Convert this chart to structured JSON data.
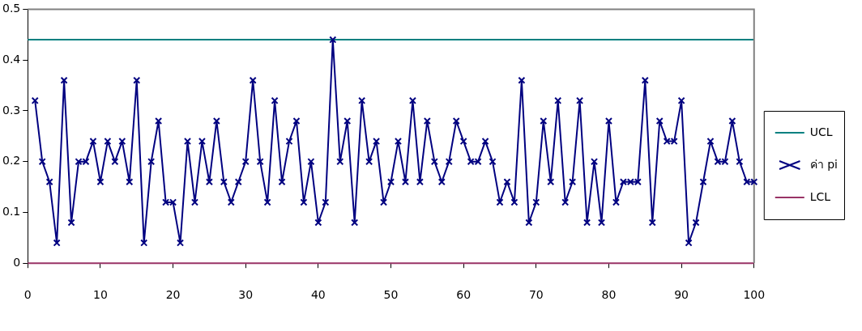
{
  "chart_data": {
    "type": "line",
    "series": [
      {
        "name": "ค่า pi",
        "color": "#000080",
        "marker": "cross",
        "x": [
          1,
          2,
          3,
          4,
          5,
          6,
          7,
          8,
          9,
          10,
          11,
          12,
          13,
          14,
          15,
          16,
          17,
          18,
          19,
          20,
          21,
          22,
          23,
          24,
          25,
          26,
          27,
          28,
          29,
          30,
          31,
          32,
          33,
          34,
          35,
          36,
          37,
          38,
          39,
          40,
          41,
          42,
          43,
          44,
          45,
          46,
          47,
          48,
          49,
          50,
          51,
          52,
          53,
          54,
          55,
          56,
          57,
          58,
          59,
          60,
          61,
          62,
          63,
          64,
          65,
          66,
          67,
          68,
          69,
          70,
          71,
          72,
          73,
          74,
          75,
          76,
          77,
          78,
          79,
          80,
          81,
          82,
          83,
          84,
          85,
          86,
          87,
          88,
          89,
          90,
          91,
          92,
          93,
          94,
          95,
          96,
          97,
          98,
          99,
          100
        ],
        "values": [
          0.32,
          0.2,
          0.16,
          0.04,
          0.36,
          0.08,
          0.2,
          0.2,
          0.24,
          0.16,
          0.24,
          0.2,
          0.24,
          0.16,
          0.36,
          0.04,
          0.2,
          0.28,
          0.12,
          0.12,
          0.04,
          0.24,
          0.12,
          0.24,
          0.16,
          0.28,
          0.16,
          0.12,
          0.16,
          0.2,
          0.36,
          0.2,
          0.12,
          0.32,
          0.16,
          0.24,
          0.28,
          0.12,
          0.2,
          0.08,
          0.12,
          0.44,
          0.2,
          0.28,
          0.08,
          0.32,
          0.2,
          0.24,
          0.12,
          0.16,
          0.24,
          0.16,
          0.32,
          0.16,
          0.28,
          0.2,
          0.16,
          0.2,
          0.28,
          0.24,
          0.2,
          0.2,
          0.24,
          0.2,
          0.12,
          0.16,
          0.12,
          0.36,
          0.08,
          0.12,
          0.28,
          0.16,
          0.32,
          0.12,
          0.16,
          0.32,
          0.08,
          0.2,
          0.08,
          0.28,
          0.12,
          0.16,
          0.16,
          0.16,
          0.36,
          0.08,
          0.28,
          0.24,
          0.24,
          0.32,
          0.04,
          0.08,
          0.16,
          0.24,
          0.2,
          0.2,
          0.28,
          0.2,
          0.16,
          0.16
        ]
      }
    ],
    "ref_lines": [
      {
        "axis": "y",
        "value": 0.44,
        "label": "UCL",
        "color": "#008080"
      },
      {
        "axis": "y",
        "value": 0,
        "label": "LCL",
        "color": "#993366"
      }
    ],
    "xlim": [
      0,
      100
    ],
    "xticks": [
      0,
      10,
      20,
      30,
      40,
      50,
      60,
      70,
      80,
      90,
      100
    ],
    "ylim": [
      0,
      0.5
    ],
    "yticks": [
      0,
      0.1,
      0.2,
      0.3,
      0.4,
      0.5
    ],
    "grid": false,
    "legend": "right"
  }
}
